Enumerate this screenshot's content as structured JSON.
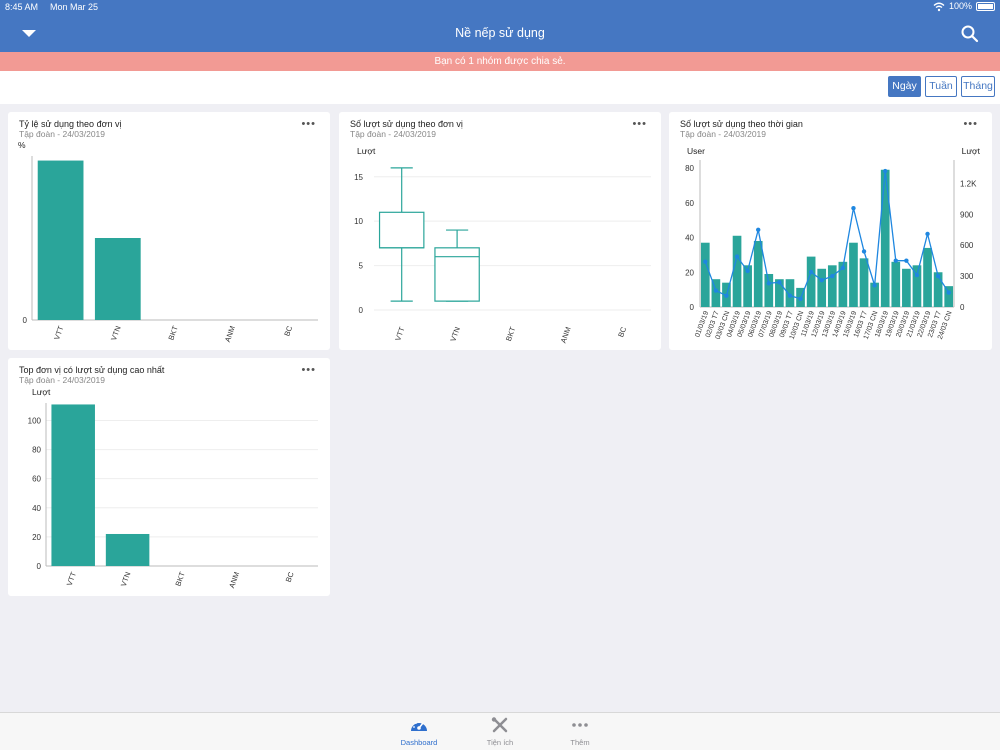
{
  "status": {
    "time": "8:45 AM",
    "date": "Mon Mar 25",
    "battery": "100%"
  },
  "nav": {
    "title": "Nề nếp sử dụng"
  },
  "banner": "Bạn có 1 nhóm được chia sẻ.",
  "filters": [
    {
      "label": "Ngày",
      "active": true
    },
    {
      "label": "Tuần"
    },
    {
      "label": "Tháng"
    }
  ],
  "cards": {
    "rate": {
      "title": "Tỷ lệ sử dụng theo đơn vị",
      "subtitle": "Tập đoàn - 24/03/2019",
      "menu": "•••"
    },
    "count": {
      "title": "Số lượt sử dụng theo đơn vị",
      "subtitle": "Tập đoàn - 24/03/2019",
      "menu": "•••"
    },
    "time": {
      "title": "Số lượt sử dụng theo thời gian",
      "subtitle": "Tập đoàn - 24/03/2019",
      "menu": "•••"
    },
    "top": {
      "title": "Top đơn vị có lượt sử dụng cao nhất",
      "subtitle": "Tập đoàn - 24/03/2019",
      "menu": "•••"
    }
  },
  "colors": {
    "accent": "#4577c2",
    "banner": "#f29a94",
    "teal": "#2aa59a",
    "line": "#1f87e0"
  },
  "tabs": [
    {
      "label": "Dashboard",
      "icon": "dashboard-gauge-icon",
      "active": true
    },
    {
      "label": "Tiện ích",
      "icon": "tools-icon"
    },
    {
      "label": "Thêm",
      "icon": "more-dots-icon"
    }
  ],
  "chart_data": [
    {
      "id": "rate",
      "type": "bar",
      "categories": [
        "VTT",
        "VTN",
        "BKT",
        "ANM",
        "BC"
      ],
      "values": [
        70,
        36,
        0,
        0,
        0
      ],
      "ylabel": "%",
      "yticks": [
        0
      ],
      "ylim": [
        0,
        72
      ]
    },
    {
      "id": "count",
      "type": "boxplot",
      "categories": [
        "VTT",
        "VTN",
        "BKT",
        "ANM",
        "BC"
      ],
      "boxes": [
        {
          "min": 1,
          "q1": 7,
          "median": 7,
          "q3": 11,
          "max": 16
        },
        {
          "min": 1,
          "q1": 1,
          "median": 6,
          "q3": 7,
          "max": 9
        }
      ],
      "ylabel": "Lượt",
      "yticks": [
        0,
        5,
        10,
        15
      ],
      "ylim": [
        0,
        17
      ]
    },
    {
      "id": "time",
      "type": "bar+line",
      "categories": [
        "01/03/19",
        "02/03 T7",
        "03/03 CN",
        "04/03/19",
        "05/03/19",
        "06/03/19",
        "07/03/19",
        "08/03/19",
        "09/03 T7",
        "10/03 CN",
        "11/03/19",
        "12/03/19",
        "13/03/19",
        "14/03/19",
        "15/03/19",
        "16/03 T7",
        "17/03 CN",
        "18/03/19",
        "19/03/19",
        "20/03/19",
        "21/03/19",
        "22/03/19",
        "23/03 T7",
        "24/03 CN"
      ],
      "series": [
        {
          "name": "User",
          "type": "bar",
          "axis": "left",
          "values": [
            37,
            16,
            14,
            41,
            24,
            38,
            19,
            16,
            16,
            11,
            29,
            22,
            24,
            26,
            37,
            28,
            14,
            79,
            26,
            22,
            24,
            34,
            20,
            12
          ]
        },
        {
          "name": "Lượt",
          "type": "line",
          "axis": "right",
          "values": [
            440,
            160,
            110,
            490,
            350,
            750,
            230,
            240,
            110,
            80,
            340,
            260,
            300,
            380,
            960,
            540,
            210,
            1320,
            450,
            450,
            310,
            710,
            300,
            140
          ]
        }
      ],
      "ylabel_left": "User",
      "ylabel_right": "Lượt",
      "yticks_left": [
        0,
        20,
        40,
        60,
        80
      ],
      "ylim_left": [
        0,
        80
      ],
      "yticks_right": [
        "0",
        "300",
        "600",
        "900",
        "1.2K"
      ],
      "ylim_right": [
        0,
        1350
      ]
    },
    {
      "id": "top",
      "type": "bar",
      "categories": [
        "VTT",
        "VTN",
        "BKT",
        "ANM",
        "BC"
      ],
      "values": [
        111,
        22,
        0,
        0,
        0
      ],
      "ylabel": "Lượt",
      "yticks": [
        0,
        20,
        40,
        60,
        80,
        100
      ],
      "ylim": [
        0,
        112
      ]
    }
  ]
}
